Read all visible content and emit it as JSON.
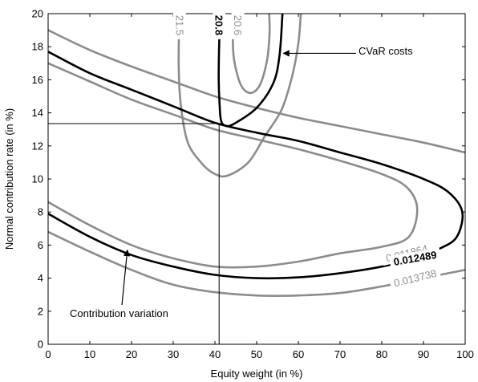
{
  "chart_data": {
    "type": "line",
    "subtype": "contour",
    "title": "",
    "xlabel": "Equity weight (in %)",
    "ylabel": "Normal contribution rate (in %)",
    "xlim": [
      0,
      100
    ],
    "ylim": [
      0,
      20
    ],
    "xticks": [
      "0",
      "10",
      "20",
      "30",
      "40",
      "50",
      "60",
      "70",
      "80",
      "90",
      "100"
    ],
    "yticks": [
      "0",
      "2",
      "4",
      "6",
      "8",
      "10",
      "12",
      "14",
      "16",
      "18",
      "20"
    ],
    "grid": false,
    "legend": "none",
    "colors": {
      "highlight": "#000000",
      "other": "#8c8c8c",
      "axis": "#000000",
      "background": "#ffffff"
    },
    "series": [
      {
        "name": "0.012489",
        "group": "contribution variation",
        "highlight": true,
        "label_at": [
          88,
          5.2
        ],
        "segments": [
          [
            [
              0,
              17.7
            ],
            [
              10,
              16.4
            ],
            [
              20,
              15.4
            ],
            [
              30,
              14.4
            ],
            [
              40,
              13.4
            ],
            [
              50,
              12.8
            ],
            [
              60,
              12.3
            ],
            [
              70,
              11.6
            ],
            [
              80,
              10.9
            ],
            [
              90,
              10.0
            ],
            [
              96,
              9.2
            ],
            [
              99.3,
              8.0
            ],
            [
              98,
              6.5
            ],
            [
              94,
              5.8
            ],
            [
              88,
              5.2
            ],
            [
              80,
              4.7
            ],
            [
              70,
              4.3
            ],
            [
              60,
              4.05
            ],
            [
              50,
              4.0
            ],
            [
              40,
              4.2
            ],
            [
              30,
              4.7
            ],
            [
              20,
              5.4
            ],
            [
              10,
              6.5
            ],
            [
              0,
              7.9
            ]
          ]
        ]
      },
      {
        "name": "0.011864",
        "group": "contribution variation",
        "highlight": false,
        "label_at": [
          86,
          5.5
        ],
        "segments": [
          [
            [
              0,
              17.0
            ],
            [
              10,
              15.9
            ],
            [
              20,
              14.8
            ],
            [
              30,
              13.9
            ],
            [
              40,
              13.0
            ],
            [
              50,
              12.4
            ],
            [
              60,
              11.8
            ],
            [
              70,
              11.1
            ],
            [
              80,
              10.3
            ],
            [
              86,
              9.5
            ],
            [
              88.5,
              8.2
            ],
            [
              86.5,
              6.5
            ],
            [
              80,
              5.9
            ],
            [
              70,
              5.5
            ],
            [
              60,
              5.0
            ],
            [
              50,
              4.7
            ],
            [
              40,
              4.7
            ],
            [
              30,
              5.2
            ],
            [
              20,
              6.0
            ],
            [
              10,
              7.2
            ],
            [
              0,
              8.6
            ]
          ]
        ]
      },
      {
        "name": "0.013738",
        "group": "contribution variation",
        "highlight": false,
        "label_at": [
          88,
          4.0
        ],
        "segments": [
          [
            [
              0,
              19.0
            ],
            [
              10,
              17.8
            ],
            [
              20,
              16.8
            ],
            [
              30,
              15.9
            ],
            [
              40,
              15.0
            ],
            [
              50,
              14.3
            ],
            [
              60,
              13.7
            ],
            [
              70,
              13.2
            ],
            [
              80,
              12.7
            ],
            [
              90,
              12.2
            ],
            [
              100,
              11.6
            ]
          ],
          [
            [
              0,
              6.8
            ],
            [
              10,
              5.6
            ],
            [
              20,
              4.5
            ],
            [
              30,
              3.6
            ],
            [
              40,
              3.15
            ],
            [
              50,
              2.95
            ],
            [
              60,
              2.95
            ],
            [
              70,
              3.1
            ],
            [
              80,
              3.5
            ],
            [
              90,
              4.0
            ],
            [
              100,
              4.5
            ]
          ]
        ]
      },
      {
        "name": "20.8",
        "group": "CVaR costs",
        "highlight": true,
        "label_at": [
          41,
          19.3
        ],
        "segments": [
          [
            [
              41.3,
              20.0
            ],
            [
              41,
              18
            ],
            [
              40.9,
              16
            ],
            [
              41.1,
              14.6
            ],
            [
              41.5,
              13.5
            ],
            [
              42.8,
              13.2
            ],
            [
              45,
              13.4
            ],
            [
              50,
              14.3
            ],
            [
              54,
              15.8
            ],
            [
              55.5,
              17.5
            ],
            [
              56.2,
              20.0
            ]
          ]
        ]
      },
      {
        "name": "20.6",
        "group": "CVaR costs",
        "highlight": false,
        "label_at": [
          45.5,
          19.3
        ],
        "segments": [
          [
            [
              44.8,
              20.0
            ],
            [
              44.3,
              18.8
            ],
            [
              44.6,
              17.2
            ],
            [
              46.2,
              15.7
            ],
            [
              48.5,
              15.2
            ],
            [
              50.8,
              15.7
            ],
            [
              52.5,
              17.2
            ],
            [
              53.1,
              18.8
            ],
            [
              53,
              20.0
            ]
          ]
        ]
      },
      {
        "name": "21.5",
        "group": "CVaR costs",
        "highlight": false,
        "label_at": [
          31.5,
          19.3
        ],
        "segments": [
          [
            [
              31.5,
              20.0
            ],
            [
              31.3,
              17
            ],
            [
              31.8,
              14.5
            ],
            [
              33.5,
              12.2
            ],
            [
              37,
              10.9
            ],
            [
              40,
              10.3
            ],
            [
              43,
              10.2
            ],
            [
              48,
              11.0
            ],
            [
              52,
              12.6
            ],
            [
              56,
              14.2
            ],
            [
              58.5,
              16.2
            ],
            [
              60,
              18.2
            ],
            [
              60.6,
              20.0
            ]
          ]
        ]
      }
    ],
    "optimum": {
      "x": 41,
      "y": 13.35
    },
    "annotations": [
      {
        "text": "CVaR costs",
        "arrow_to": [
          56,
          17.6
        ]
      },
      {
        "text": "Contribution variation",
        "arrow_to": [
          19,
          5.7
        ]
      }
    ]
  }
}
